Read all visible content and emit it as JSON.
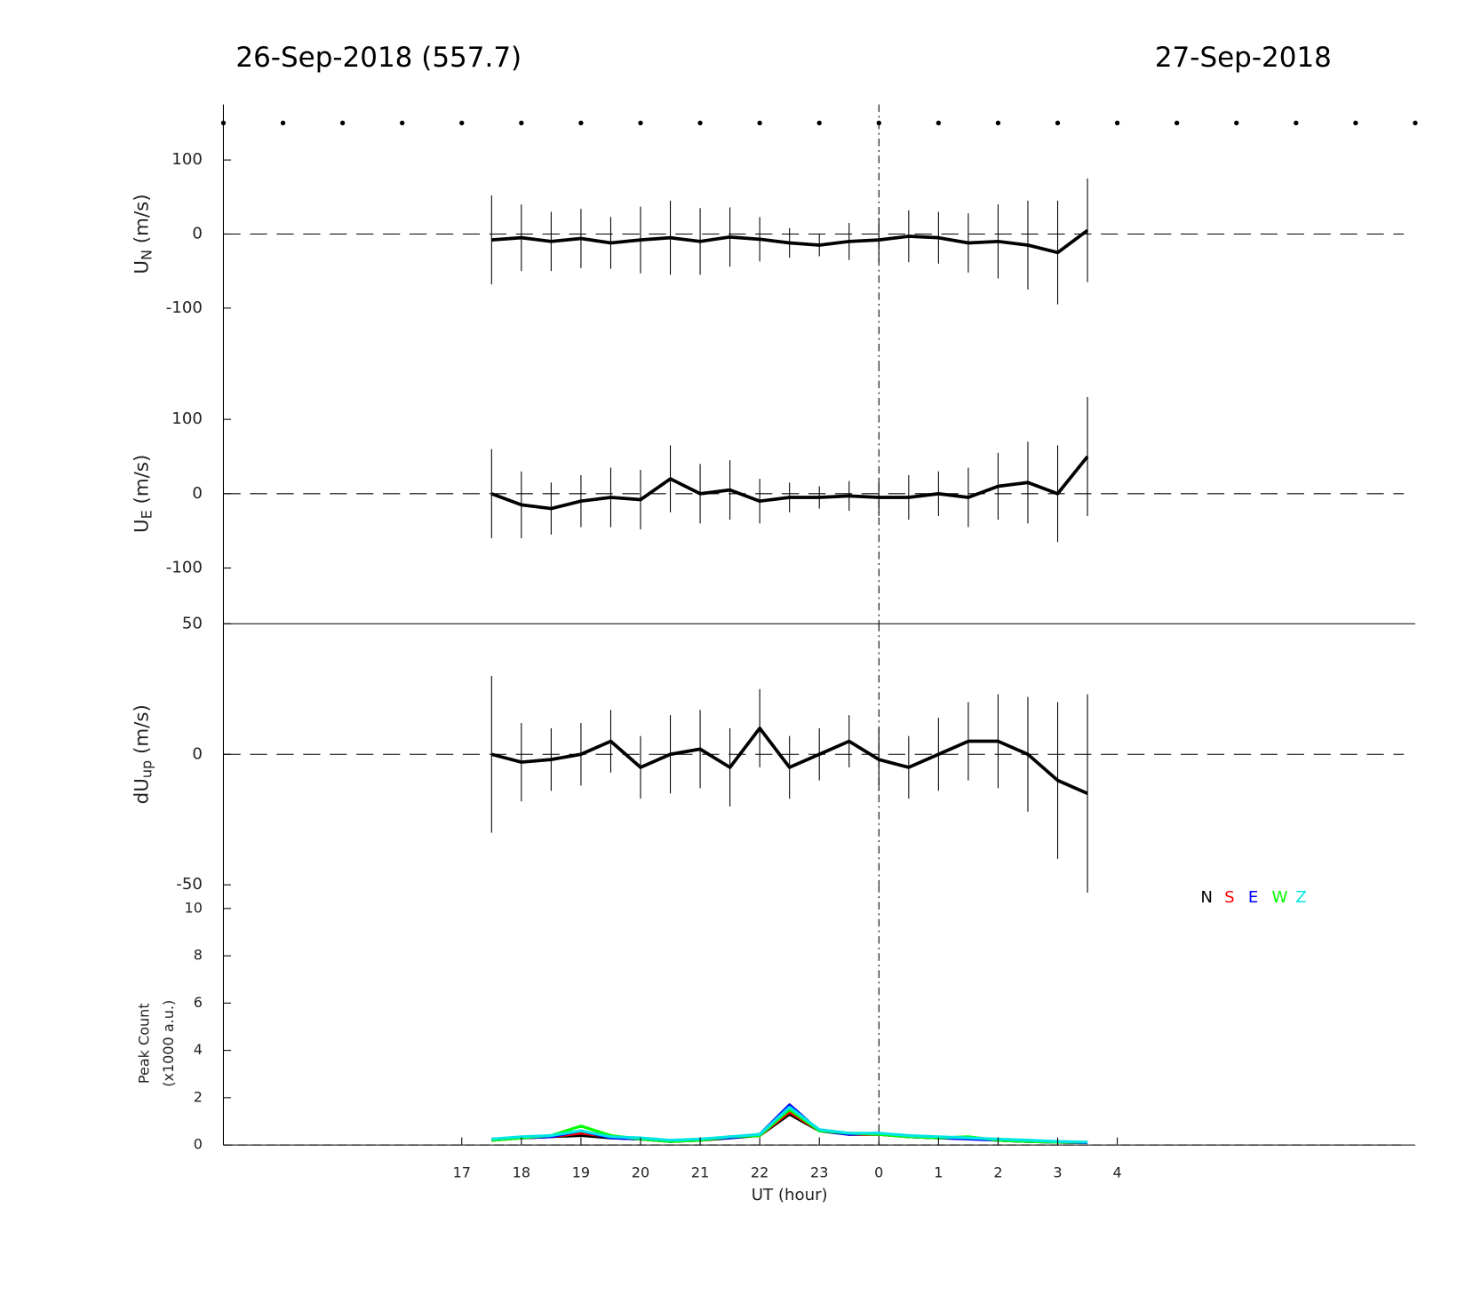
{
  "chart_data": [
    {
      "type": "errorline",
      "title": "26-Sep-2018 (557.7)",
      "title_right": "27-Sep-2018",
      "ylabel_parts": [
        "U",
        "N",
        " (m/s)"
      ],
      "xlim": [
        13,
        33
      ],
      "ylim": [
        -175,
        175
      ],
      "yticks": [
        -100,
        0,
        100
      ],
      "vline": 24,
      "zero_line": true,
      "hour_marks": [
        13,
        14,
        15,
        16,
        17,
        18,
        19,
        20,
        21,
        22,
        23,
        24,
        25,
        26,
        27,
        28,
        29,
        30,
        31,
        32,
        33
      ],
      "hour_marks_y": 150,
      "x": [
        17.5,
        18,
        18.5,
        19,
        19.5,
        20,
        20.5,
        21,
        21.5,
        22,
        22.5,
        23,
        23.5,
        24,
        24.5,
        25,
        25.5,
        26,
        26.5,
        27,
        27.5
      ],
      "values": [
        -8,
        -5,
        -10,
        -6,
        -12,
        -8,
        -5,
        -10,
        -4,
        -7,
        -12,
        -15,
        -10,
        -8,
        -3,
        -5,
        -12,
        -10,
        -15,
        -25,
        5
      ],
      "errors": [
        60,
        45,
        40,
        40,
        35,
        45,
        50,
        45,
        40,
        30,
        20,
        15,
        25,
        30,
        35,
        35,
        40,
        50,
        60,
        70,
        70
      ],
      "color": "#000000"
    },
    {
      "type": "errorline",
      "ylabel_parts": [
        "U",
        "E",
        " (m/s)"
      ],
      "xlim": [
        13,
        33
      ],
      "ylim": [
        -175,
        175
      ],
      "yticks": [
        -100,
        0,
        100
      ],
      "vline": 24,
      "zero_line": true,
      "x": [
        17.5,
        18,
        18.5,
        19,
        19.5,
        20,
        20.5,
        21,
        21.5,
        22,
        22.5,
        23,
        23.5,
        24,
        24.5,
        25,
        25.5,
        26,
        26.5,
        27,
        27.5
      ],
      "values": [
        0,
        -15,
        -20,
        -10,
        -5,
        -8,
        20,
        0,
        5,
        -10,
        -5,
        -5,
        -3,
        -5,
        -5,
        0,
        -5,
        10,
        15,
        0,
        50
      ],
      "errors": [
        60,
        45,
        35,
        35,
        40,
        40,
        45,
        40,
        40,
        30,
        20,
        15,
        20,
        25,
        30,
        30,
        40,
        45,
        55,
        65,
        80
      ],
      "color": "#000000"
    },
    {
      "type": "errorline",
      "ylabel_parts": [
        "dU",
        "up",
        " (m/s)"
      ],
      "xlim": [
        13,
        33
      ],
      "ylim": [
        -50,
        50
      ],
      "yticks": [
        -50,
        0,
        50
      ],
      "vline": 24,
      "zero_line": true,
      "x": [
        17.5,
        18,
        18.5,
        19,
        19.5,
        20,
        20.5,
        21,
        21.5,
        22,
        22.5,
        23,
        23.5,
        24,
        24.5,
        25,
        25.5,
        26,
        26.5,
        27,
        27.5
      ],
      "values": [
        0,
        -3,
        -2,
        0,
        5,
        -5,
        0,
        2,
        -5,
        10,
        -5,
        0,
        5,
        -2,
        -5,
        0,
        5,
        5,
        0,
        -10,
        -15
      ],
      "errors": [
        30,
        15,
        12,
        12,
        12,
        12,
        15,
        15,
        15,
        15,
        12,
        10,
        10,
        12,
        12,
        14,
        15,
        18,
        22,
        30,
        38
      ],
      "color": "#000000"
    },
    {
      "type": "line",
      "ylabel_lines": [
        "Peak Count",
        "(x1000 a.u.)"
      ],
      "xlabel": "UT (hour)",
      "xlim": [
        13,
        33
      ],
      "ylim": [
        0,
        11
      ],
      "yticks": [
        0,
        2,
        4,
        6,
        8,
        10
      ],
      "vline": 24,
      "zero_line": true,
      "xticks": [
        17,
        18,
        19,
        20,
        21,
        22,
        23,
        {
          "value": 24,
          "label": "0"
        },
        {
          "value": 25,
          "label": "1"
        },
        {
          "value": 26,
          "label": "2"
        },
        {
          "value": 27,
          "label": "3"
        },
        {
          "value": 28,
          "label": "4"
        }
      ],
      "x": [
        17.5,
        18,
        18.5,
        19,
        19.5,
        20,
        20.5,
        21,
        21.5,
        22,
        22.5,
        23,
        23.5,
        24,
        24.5,
        25,
        25.5,
        26,
        26.5,
        27,
        27.5
      ],
      "series": [
        {
          "name": "N",
          "color": "#000000",
          "values": [
            0.2,
            0.3,
            0.35,
            0.4,
            0.3,
            0.25,
            0.15,
            0.2,
            0.3,
            0.4,
            1.3,
            0.6,
            0.45,
            0.45,
            0.35,
            0.3,
            0.3,
            0.2,
            0.15,
            0.12,
            0.1
          ]
        },
        {
          "name": "S",
          "color": "#ff0000",
          "values": [
            0.2,
            0.3,
            0.35,
            0.5,
            0.35,
            0.25,
            0.15,
            0.2,
            0.35,
            0.4,
            1.4,
            0.6,
            0.45,
            0.45,
            0.35,
            0.3,
            0.3,
            0.2,
            0.15,
            0.12,
            0.1
          ]
        },
        {
          "name": "E",
          "color": "#0000ff",
          "values": [
            0.25,
            0.3,
            0.35,
            0.6,
            0.3,
            0.25,
            0.15,
            0.25,
            0.3,
            0.45,
            1.7,
            0.6,
            0.45,
            0.5,
            0.35,
            0.3,
            0.25,
            0.2,
            0.15,
            0.12,
            0.1
          ]
        },
        {
          "name": "W",
          "color": "#00ff00",
          "values": [
            0.2,
            0.3,
            0.4,
            0.8,
            0.4,
            0.25,
            0.15,
            0.2,
            0.35,
            0.4,
            1.5,
            0.6,
            0.5,
            0.45,
            0.35,
            0.3,
            0.35,
            0.2,
            0.15,
            0.12,
            0.12
          ]
        },
        {
          "name": "Z",
          "color": "#00e5e5",
          "values": [
            0.25,
            0.35,
            0.4,
            0.6,
            0.35,
            0.3,
            0.2,
            0.25,
            0.35,
            0.45,
            1.6,
            0.65,
            0.5,
            0.5,
            0.4,
            0.35,
            0.3,
            0.25,
            0.2,
            0.15,
            0.12
          ]
        }
      ]
    }
  ]
}
